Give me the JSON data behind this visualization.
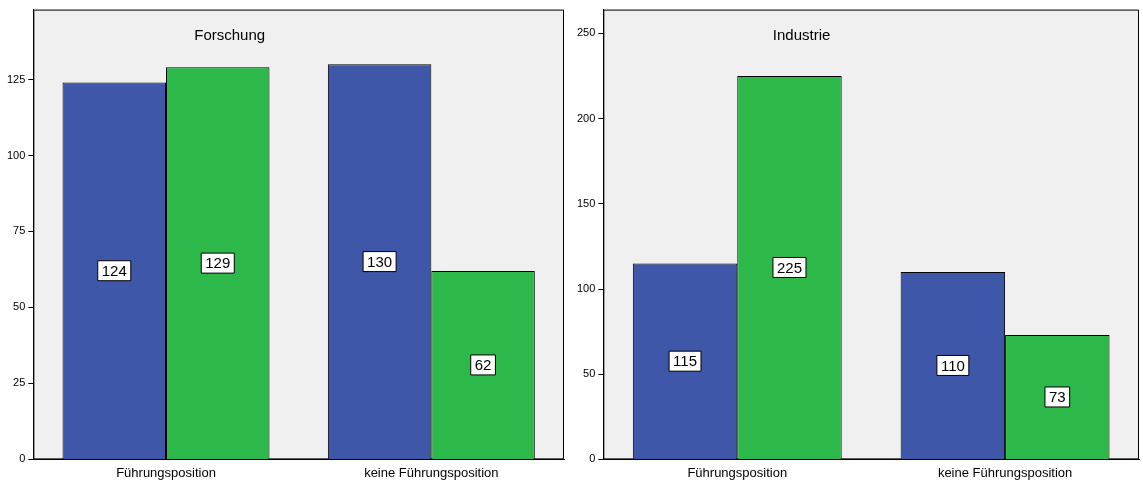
{
  "chart_data": [
    {
      "type": "bar",
      "title": "Forschung",
      "categories": [
        "Führungsposition",
        "keine Führungsposition"
      ],
      "series": [
        {
          "color": "#3f57a9",
          "values": [
            124,
            130
          ]
        },
        {
          "color": "#2db84a",
          "values": [
            129,
            62
          ]
        }
      ],
      "ylim": [
        0,
        148
      ],
      "yticks": [
        0,
        25,
        50,
        75,
        100,
        125
      ],
      "data_labels": true,
      "grid": false,
      "legend": false
    },
    {
      "type": "bar",
      "title": "Industrie",
      "categories": [
        "Führungsposition",
        "keine Führungsposition"
      ],
      "series": [
        {
          "color": "#3f57a9",
          "values": [
            115,
            110
          ]
        },
        {
          "color": "#2db84a",
          "values": [
            225,
            73
          ]
        }
      ],
      "ylim": [
        0,
        264
      ],
      "yticks": [
        0,
        50,
        100,
        150,
        200,
        250
      ],
      "data_labels": true,
      "grid": false,
      "legend": false
    }
  ]
}
